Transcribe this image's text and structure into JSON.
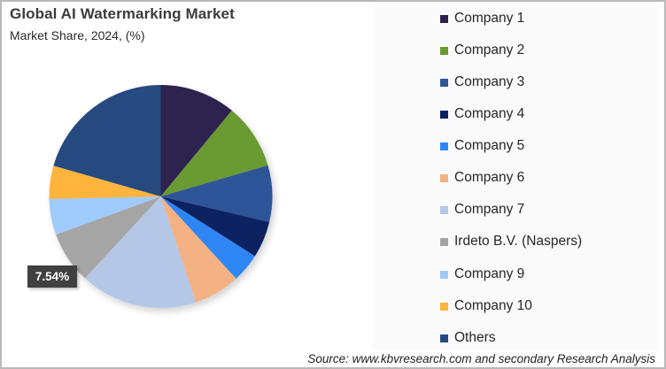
{
  "header": {
    "title": "Global AI Watermarking Market",
    "subtitle": "Market Share, 2024, (%)"
  },
  "source": "Source: www.kbvresearch.com and secondary Research Analysis",
  "highlight_label": {
    "text": "7.54%",
    "series": "Irdeto B.V. (Naspers)"
  },
  "legend": {
    "items": [
      {
        "label": "Company 1",
        "color": "#2e2150"
      },
      {
        "label": "Company 2",
        "color": "#6a9a32"
      },
      {
        "label": "Company 3",
        "color": "#2f5597"
      },
      {
        "label": "Company 4",
        "color": "#0a2060"
      },
      {
        "label": "Company 5",
        "color": "#2f86f5"
      },
      {
        "label": "Company 6",
        "color": "#f4b183"
      },
      {
        "label": "Company 7",
        "color": "#b4c7e7"
      },
      {
        "label": "Irdeto B.V. (Naspers)",
        "color": "#a5a5a5"
      },
      {
        "label": "Company 9",
        "color": "#9fcbfa"
      },
      {
        "label": "Company 10",
        "color": "#ffb43c"
      },
      {
        "label": "Others",
        "color": "#254a80"
      }
    ]
  },
  "chart_data": {
    "type": "pie",
    "title": "Global AI Watermarking Market",
    "subtitle": "Market Share, 2024, (%)",
    "categories": [
      "Company 1",
      "Company 2",
      "Company 3",
      "Company 4",
      "Company 5",
      "Company 6",
      "Company 7",
      "Irdeto B.V. (Naspers)",
      "Company 9",
      "Company 10",
      "Others"
    ],
    "values": [
      11.0,
      9.5,
      8.2,
      5.3,
      4.2,
      6.7,
      17.0,
      7.54,
      5.2,
      4.8,
      20.56
    ],
    "colors": [
      "#2e2150",
      "#6a9a32",
      "#2f5597",
      "#0a2060",
      "#2f86f5",
      "#f4b183",
      "#b4c7e7",
      "#a5a5a5",
      "#9fcbfa",
      "#ffb43c",
      "#254a80"
    ],
    "data_labels": [
      {
        "category": "Irdeto B.V. (Naspers)",
        "text": "7.54%"
      }
    ],
    "start_angle_deg": 0,
    "direction": "clockwise",
    "legend_position": "right",
    "unit": "%"
  }
}
